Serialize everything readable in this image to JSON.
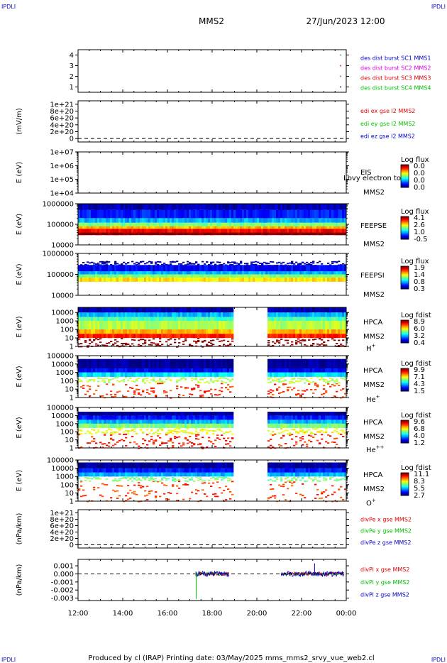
{
  "header": {
    "corner_left_top": "IPDLI",
    "corner_right_top": "IPDLI",
    "corner_left_bottom": "IPDLI",
    "corner_right_bottom": "IPDLI",
    "spacecraft": "MMS2",
    "datetime": "27/Jun/2023 12:00"
  },
  "footer": "Produced by cl (IRAP)   Printing date: 03/May/2025   mms_mms2_srvy_vue_web2.cl",
  "chart_data": {
    "type": "heatmap",
    "x": {
      "range": [
        "12:00",
        "00:00"
      ],
      "tick_labels": [
        "12:00",
        "14:00",
        "16:00",
        "18:00",
        "20:00",
        "22:00",
        "00:00"
      ]
    },
    "panels": [
      {
        "id": "burst",
        "type": "scatter",
        "ylabel": "",
        "ylim": [
          0.5,
          4.5
        ],
        "yticks": [
          "1",
          "2",
          "3",
          "4"
        ],
        "legend": [
          {
            "text": "des dist burst SC1 MMS1",
            "color": "#0000c8"
          },
          {
            "text": "des dist burst SC2 MMS2",
            "color": "#e000e0"
          },
          {
            "text": "des dist burst SC3 MMS3",
            "color": "#e00000"
          },
          {
            "text": "des dist burst SC4 MMS4",
            "color": "#00c000"
          }
        ],
        "series": [
          {
            "x": [
              "23:45"
            ],
            "values": [
              1
            ],
            "color": "#0000c8"
          },
          {
            "x": [
              "23:45"
            ],
            "values": [
              2
            ],
            "color": "#e000e0"
          },
          {
            "x": [
              "23:45"
            ],
            "values": [
              3
            ],
            "color": "#e00000"
          },
          {
            "x": [
              "23:45"
            ],
            "values": [
              4
            ],
            "color": "#00c000"
          }
        ]
      },
      {
        "id": "edi",
        "type": "line",
        "ylabel": "(mV/m)",
        "ylim": [
          -1e+20,
          1.1e+21
        ],
        "yticks": [
          "0",
          "2e+20",
          "4e+20",
          "6e+20",
          "8e+20",
          "1e+21"
        ],
        "zero_line": true,
        "legend": [
          {
            "text": "edi ex gse l2 MMS2",
            "color": "#e00000"
          },
          {
            "text": "edi ey gse l2 MMS2",
            "color": "#00c000"
          },
          {
            "text": "edi ez gse l2 MMS2",
            "color": "#0000c8"
          }
        ]
      },
      {
        "id": "eis",
        "type": "heatmap",
        "ylabel": "E (eV)",
        "yscale": "log",
        "ylim": [
          10000.0,
          10000000.0
        ],
        "yticks": [
          "1e+04",
          "1e+05",
          "1e+06",
          "1e+07"
        ],
        "instrument": "EIS",
        "spacecraft": "MMS2",
        "overlay_text": "Lbvy electron to",
        "colorbar": {
          "title": "Log flux",
          "values": [
            "0.0",
            "0.0",
            "0.0",
            "0.0"
          ]
        },
        "cells": []
      },
      {
        "id": "feepse",
        "type": "heatmap",
        "ylabel": "E (eV)",
        "yscale": "log",
        "ylim": [
          10000.0,
          1000000.0
        ],
        "yticks": [
          "10000",
          "100000",
          "1000000"
        ],
        "instrument": "FEEPSE",
        "spacecraft": "MMS2",
        "colorbar": {
          "title": "Log flux",
          "values": [
            "4.1",
            "2.6",
            "1.0",
            "-0.5"
          ]
        },
        "bands": [
          {
            "lo": 500000.0,
            "hi": 1000000.0,
            "level": 0.05
          },
          {
            "lo": 200000.0,
            "hi": 500000.0,
            "level": 0.15
          },
          {
            "lo": 120000.0,
            "hi": 200000.0,
            "level": 0.3
          },
          {
            "lo": 80000.0,
            "hi": 120000.0,
            "level": 0.5
          },
          {
            "lo": 60000.0,
            "hi": 80000.0,
            "level": 0.7
          },
          {
            "lo": 40000.0,
            "hi": 60000.0,
            "level": 0.88
          },
          {
            "lo": 30000.0,
            "hi": 40000.0,
            "level": 1.0
          }
        ]
      },
      {
        "id": "feepsi",
        "type": "heatmap",
        "ylabel": "E (eV)",
        "yscale": "log",
        "ylim": [
          10000.0,
          1000000.0
        ],
        "yticks": [
          "10000",
          "100000",
          "1000000"
        ],
        "instrument": "FEEPSI",
        "spacecraft": "MMS2",
        "colorbar": {
          "title": "Log flux",
          "values": [
            "1.9",
            "1.4",
            "0.8",
            "0.3"
          ]
        },
        "bands": [
          {
            "lo": 280000.0,
            "hi": 450000.0,
            "level": 0.02,
            "sparse": true
          },
          {
            "lo": 140000.0,
            "hi": 280000.0,
            "level": 0.12
          },
          {
            "lo": 100000.0,
            "hi": 140000.0,
            "level": 0.3
          },
          {
            "lo": 70000.0,
            "hi": 100000.0,
            "level": 0.5
          },
          {
            "lo": 45000.0,
            "hi": 70000.0,
            "level": 0.65
          }
        ]
      },
      {
        "id": "hpca_h",
        "type": "heatmap",
        "ylabel": "E (eV)",
        "yscale": "log",
        "ylim": [
          1,
          40000
        ],
        "yticks": [
          "1",
          "10",
          "100",
          "1000",
          "10000"
        ],
        "instrument": "HPCA",
        "spacecraft": "MMS2",
        "species": "H",
        "species_charge": "+",
        "data_gap": [
          "18:55",
          "20:30"
        ],
        "colorbar": {
          "title": "Log fdist",
          "values": [
            "8.9",
            "6.0",
            "3.2",
            "0.4"
          ]
        },
        "bands": [
          {
            "lo": 10000,
            "hi": 40000,
            "level": 0.05
          },
          {
            "lo": 3000,
            "hi": 10000,
            "level": 0.3
          },
          {
            "lo": 1000,
            "hi": 3000,
            "level": 0.45
          },
          {
            "lo": 100,
            "hi": 1000,
            "level": 0.55
          },
          {
            "lo": 30,
            "hi": 100,
            "level": 0.7
          },
          {
            "lo": 10,
            "hi": 30,
            "level": 0.85
          },
          {
            "lo": 1,
            "hi": 10,
            "level": 1.0,
            "sparse": true
          }
        ]
      },
      {
        "id": "hpca_he",
        "type": "heatmap",
        "ylabel": "E (eV)",
        "yscale": "log",
        "ylim": [
          1,
          100000
        ],
        "yticks": [
          "1",
          "10",
          "100",
          "1000",
          "10000",
          "100000"
        ],
        "instrument": "HPCA",
        "spacecraft": "MMS2",
        "species": "He",
        "species_charge": "+",
        "data_gap": [
          "18:55",
          "20:30"
        ],
        "colorbar": {
          "title": "Log fdist",
          "values": [
            "9.9",
            "7.1",
            "4.3",
            "1.5"
          ]
        },
        "bands": [
          {
            "lo": 3000,
            "hi": 40000,
            "level": 0.02
          },
          {
            "lo": 1000,
            "hi": 3000,
            "level": 0.12
          },
          {
            "lo": 300,
            "hi": 1000,
            "level": 0.35
          },
          {
            "lo": 60,
            "hi": 300,
            "level": 0.55,
            "sparse": true
          },
          {
            "lo": 1,
            "hi": 60,
            "level": 0.82,
            "sparse": true
          }
        ]
      },
      {
        "id": "hpca_hepp",
        "type": "heatmap",
        "ylabel": "E (eV)",
        "yscale": "log",
        "ylim": [
          1,
          100000
        ],
        "yticks": [
          "1",
          "10",
          "100",
          "1000",
          "10000",
          "100000"
        ],
        "instrument": "HPCA",
        "spacecraft": "MMS2",
        "species": "He",
        "species_charge": "++",
        "data_gap": [
          "18:55",
          "20:30"
        ],
        "colorbar": {
          "title": "Log fdist",
          "values": [
            "9.6",
            "6.8",
            "4.0",
            "1.2"
          ]
        },
        "bands": [
          {
            "lo": 10000,
            "hi": 30000,
            "level": 0.02
          },
          {
            "lo": 3000,
            "hi": 10000,
            "level": 0.15
          },
          {
            "lo": 1000,
            "hi": 3000,
            "level": 0.3
          },
          {
            "lo": 300,
            "hi": 1000,
            "level": 0.5
          },
          {
            "lo": 60,
            "hi": 300,
            "level": 0.62,
            "sparse": true
          },
          {
            "lo": 1,
            "hi": 60,
            "level": 0.85,
            "sparse": true
          }
        ]
      },
      {
        "id": "hpca_o",
        "type": "heatmap",
        "ylabel": "E (eV)",
        "yscale": "log",
        "ylim": [
          1,
          100000
        ],
        "yticks": [
          "1",
          "10",
          "100",
          "1000",
          "10000",
          "100000"
        ],
        "instrument": "HPCA",
        "spacecraft": "MMS2",
        "species": "O",
        "species_charge": "+",
        "data_gap": [
          "18:55",
          "20:30"
        ],
        "colorbar": {
          "title": "Log fdist",
          "values": [
            "11.1",
            "8.3",
            "5.5",
            "2.7"
          ]
        },
        "bands": [
          {
            "lo": 10000,
            "hi": 50000,
            "level": 0.02
          },
          {
            "lo": 3000,
            "hi": 10000,
            "level": 0.15
          },
          {
            "lo": 1000,
            "hi": 3000,
            "level": 0.3
          },
          {
            "lo": 300,
            "hi": 1000,
            "level": 0.5,
            "sparse": true
          },
          {
            "lo": 1,
            "hi": 300,
            "level": 0.82,
            "sparse": true
          }
        ]
      },
      {
        "id": "divpe",
        "type": "line",
        "ylabel": "(nPa/km)",
        "ylim": [
          -1e+20,
          1.1e+21
        ],
        "yticks": [
          "0",
          "2e+20",
          "4e+20",
          "6e+20",
          "8e+20",
          "1e+21"
        ],
        "zero_line": true,
        "legend": [
          {
            "text": "divPe x gse MMS2",
            "color": "#e00000"
          },
          {
            "text": "divPe y gse MMS2",
            "color": "#00c000"
          },
          {
            "text": "divPe z gse MMS2",
            "color": "#0000c8"
          }
        ]
      },
      {
        "id": "divpi",
        "type": "line",
        "ylabel": "(nPa/km)",
        "ylim": [
          -0.0033,
          0.0018
        ],
        "yticks": [
          "-0.003",
          "-0.002",
          "-0.001",
          "0.000",
          "0.001"
        ],
        "ytick_values": [
          -0.003,
          -0.002,
          -0.001,
          0,
          0.001
        ],
        "zero_line": true,
        "legend": [
          {
            "text": "divPi x gse MMS2",
            "color": "#e00000"
          },
          {
            "text": "divPi y gse MMS2",
            "color": "#00c000"
          },
          {
            "text": "divPi z gse MMS2",
            "color": "#0000c8"
          }
        ],
        "data_segments": [
          [
            "17:15",
            "18:45"
          ],
          [
            "21:05",
            "23:55"
          ]
        ],
        "spikes": [
          {
            "x": "17:17",
            "y": -0.0031,
            "color": "#00c000"
          },
          {
            "x": "22:35",
            "y": 0.0013,
            "color": "#0000c8"
          }
        ],
        "noise_amplitude": 0.00035
      }
    ]
  }
}
